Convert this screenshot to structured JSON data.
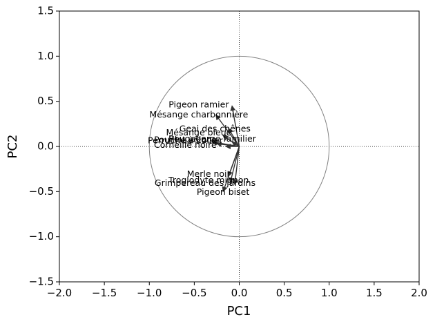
{
  "chart_data": {
    "type": "scatter",
    "subtype": "pca-correlation-circle",
    "title": "",
    "xlabel": "PC1",
    "ylabel": "PC2",
    "xlim": [
      -2.0,
      2.0
    ],
    "ylim": [
      -1.5,
      1.5
    ],
    "xticks": [
      "−2.0",
      "−1.5",
      "−1.0",
      "−0.5",
      "0.0",
      "0.5",
      "1.0",
      "1.5",
      "2.0"
    ],
    "yticks": [
      "−1.5",
      "−1.0",
      "−0.5",
      "0.0",
      "0.5",
      "1.0",
      "1.5"
    ],
    "grid": false,
    "reference_lines": {
      "x": 0,
      "y": 0,
      "style": "dotted"
    },
    "circle_radius": 1.0,
    "colors": {
      "arrow": "#333333",
      "circle": "#808080",
      "axis": "#000000"
    },
    "variables": [
      {
        "name": "Pigeon ramier",
        "x": -0.08,
        "y": 0.45,
        "label_x": -0.45,
        "label_y": 0.46
      },
      {
        "name": "Mésange charbonnière",
        "x": -0.26,
        "y": 0.35,
        "label_x": -0.45,
        "label_y": 0.35
      },
      {
        "name": "Geai des chênes",
        "x": -0.12,
        "y": 0.2,
        "label_x": -0.27,
        "label_y": 0.19
      },
      {
        "name": "Mésange bleue",
        "x": -0.18,
        "y": 0.12,
        "label_x": -0.45,
        "label_y": 0.15
      },
      {
        "name": "Rougegorge familier",
        "x": -0.08,
        "y": 0.05,
        "label_x": -0.3,
        "label_y": 0.08
      },
      {
        "name": "Pouillot véloce",
        "x": -0.3,
        "y": 0.05,
        "label_x": -0.6,
        "label_y": 0.07
      },
      {
        "name": "Perruche à collier",
        "x": -0.25,
        "y": 0.03,
        "label_x": -0.6,
        "label_y": 0.06
      },
      {
        "name": "Corneille noire",
        "x": -0.15,
        "y": 0.0,
        "label_x": -0.6,
        "label_y": 0.01
      },
      {
        "name": "Merle noir",
        "x": -0.12,
        "y": -0.33,
        "label_x": -0.34,
        "label_y": -0.31
      },
      {
        "name": "Troglodyte mignon",
        "x": -0.1,
        "y": -0.4,
        "label_x": -0.34,
        "label_y": -0.38
      },
      {
        "name": "Grimpereau des jardins",
        "x": -0.05,
        "y": -0.42,
        "label_x": -0.38,
        "label_y": -0.41
      },
      {
        "name": "Pigeon biset",
        "x": -0.18,
        "y": -0.5,
        "label_x": -0.18,
        "label_y": -0.51
      }
    ]
  }
}
